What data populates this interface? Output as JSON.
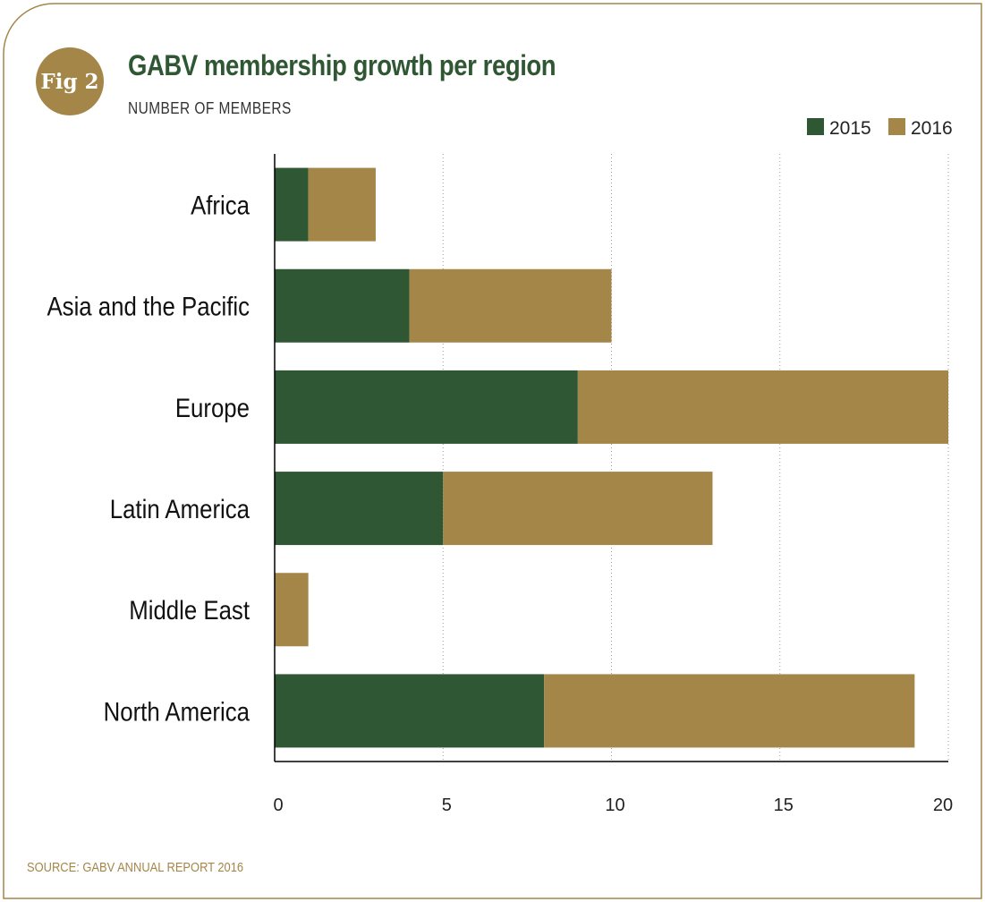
{
  "figure": {
    "badge": "Fig 2",
    "source": "SOURCE: GABV ANNUAL REPORT 2016"
  },
  "chart_data": {
    "type": "bar",
    "orientation": "horizontal",
    "stacked": true,
    "title": "GABV membership growth per region",
    "subtitle": "NUMBER OF MEMBERS",
    "categories": [
      "Africa",
      "Asia and the Pacific",
      "Europe",
      "Latin America",
      "Middle East",
      "North America"
    ],
    "series": [
      {
        "name": "2015",
        "values": [
          1,
          4,
          9,
          5,
          0,
          8
        ],
        "color": "#2f5733"
      },
      {
        "name": "2016",
        "values": [
          2,
          6,
          11,
          8,
          1,
          11
        ],
        "color": "#a48649"
      }
    ],
    "xlim": [
      0,
      20
    ],
    "xticks": [
      0,
      5,
      10,
      15,
      20
    ],
    "grid": "vertical dotted",
    "legend": "top-right",
    "frame_color": "#a48649"
  }
}
